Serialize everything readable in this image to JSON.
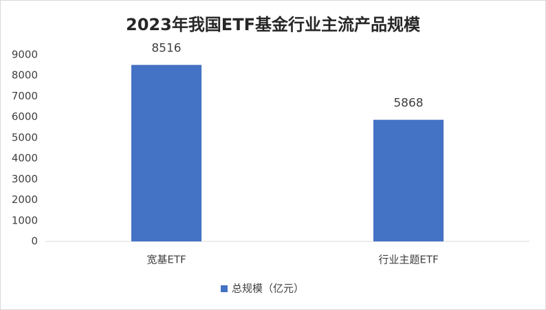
{
  "chart_data": {
    "type": "bar",
    "title": "2023年我国ETF基金行业主流产品规模",
    "categories": [
      "宽基ETF",
      "行业主题ETF"
    ],
    "series": [
      {
        "name": "总规模（亿元）",
        "color": "#4472c4",
        "values": [
          8516,
          5868
        ]
      }
    ],
    "ylim": [
      0,
      9000
    ],
    "yticks": [
      0,
      1000,
      2000,
      3000,
      4000,
      5000,
      6000,
      7000,
      8000,
      9000
    ],
    "grid": false,
    "legend": "bottom"
  }
}
